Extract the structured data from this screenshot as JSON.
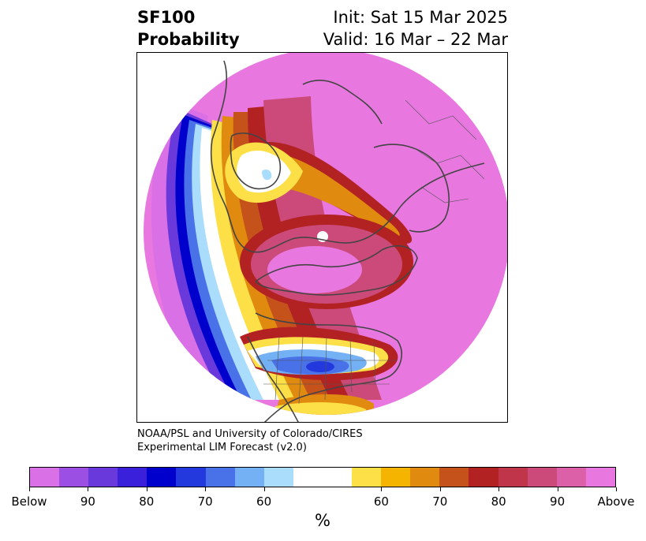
{
  "header": {
    "product_line1": "SF100",
    "product_line2": "Probability",
    "init_line": "Init: Sat 15 Mar 2025",
    "valid_line": "Valid: 16 Mar – 22 Mar"
  },
  "credit": {
    "line1": "NOAA/PSL and University of Colorado/CIRES",
    "line2": "Experimental LIM Forecast (v2.0)"
  },
  "colorbar": {
    "colors": [
      "#da70e6",
      "#9b4fe3",
      "#6a39dc",
      "#3a1fdb",
      "#0000cc",
      "#2338dd",
      "#4a72e8",
      "#74b0f4",
      "#aadcfc",
      "#ffffff",
      "#fde047",
      "#f4b400",
      "#e08a10",
      "#c4521a",
      "#b22222",
      "#c0354a",
      "#cc4a7a",
      "#db60a8",
      "#e878e0"
    ],
    "tick_labels": [
      "Below",
      "90",
      "80",
      "70",
      "60",
      "60",
      "70",
      "80",
      "90",
      "Above"
    ],
    "units": "%"
  }
}
